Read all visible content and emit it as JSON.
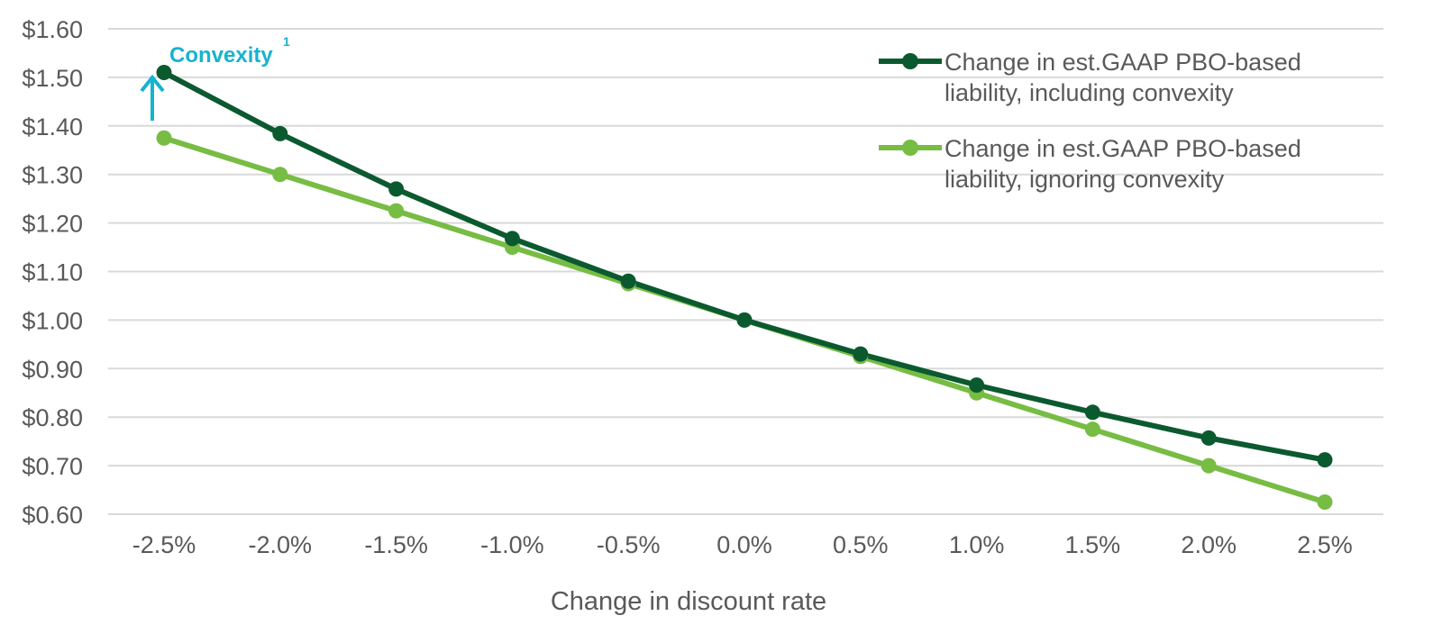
{
  "chart_data": {
    "type": "line",
    "title": "",
    "xlabel": "Change in discount rate",
    "ylabel": "",
    "x": [
      "-2.5%",
      "-2.0%",
      "-1.5%",
      "-1.0%",
      "-0.5%",
      "0.0%",
      "0.5%",
      "1.0%",
      "1.5%",
      "2.0%",
      "2.5%"
    ],
    "ylim": [
      0.6,
      1.6
    ],
    "yticks": [
      "$0.60",
      "$0.70",
      "$0.80",
      "$0.90",
      "$1.00",
      "$1.10",
      "$1.20",
      "$1.30",
      "$1.40",
      "$1.50",
      "$1.60"
    ],
    "grid": true,
    "legend_position": "top-right",
    "series": [
      {
        "name_line1": "Change in est.GAAP PBO-based",
        "name_line2": "liability, including convexity",
        "color": "#0b5a2f",
        "values": [
          1.51,
          1.384,
          1.27,
          1.168,
          1.08,
          1.0,
          0.93,
          0.866,
          0.81,
          0.757,
          0.712
        ]
      },
      {
        "name_line1": "Change in est.GAAP PBO-based",
        "name_line2": "liability, ignoring convexity",
        "color": "#77bc43",
        "values": [
          1.375,
          1.3,
          1.225,
          1.15,
          1.075,
          1.0,
          0.925,
          0.85,
          0.775,
          0.7,
          0.625
        ]
      }
    ],
    "annotation": {
      "text": "Convexity",
      "superscript": "1",
      "color": "#17b3cf"
    }
  }
}
